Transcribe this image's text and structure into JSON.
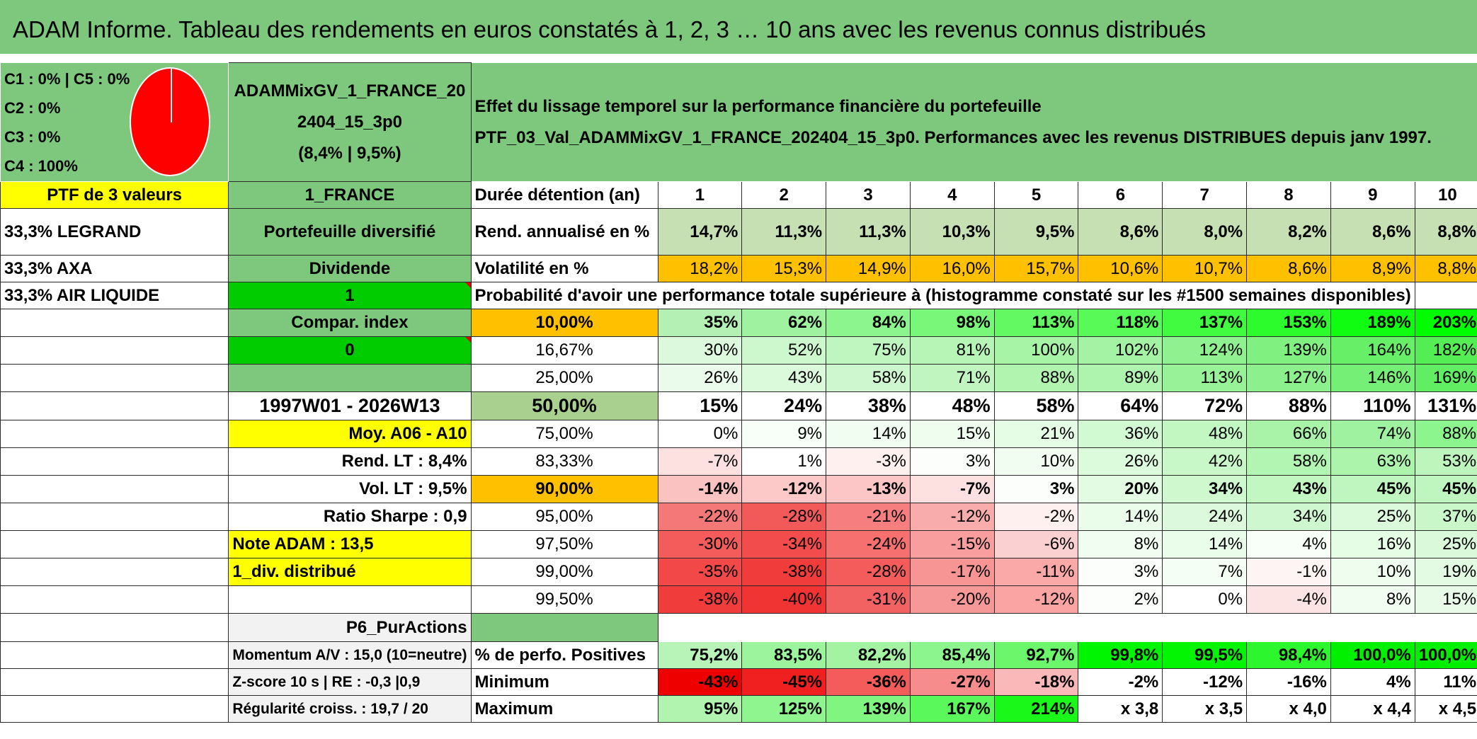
{
  "banner": {
    "title": "ADAM Informe. Tableau des rendements en euros constatés à 1, 2, 3 … 10 ans avec les revenus connus distribués"
  },
  "left": {
    "legend": [
      "C1 : 0% | C5 : 0%",
      "C2 : 0%",
      "C3 : 0%",
      "C4 : 100%"
    ],
    "ptf_label": "PTF de 3 valeurs",
    "holdings": [
      "33,3% LEGRAND",
      "33,3% AXA",
      "33,3% AIR LIQUIDE"
    ]
  },
  "mid": {
    "fund_name_line1": "ADAMMixGV_1_FRANCE_20",
    "fund_name_line2": "2404_15_3p0",
    "fund_name_line3": "(8,4% | 9,5%)",
    "region": "1_FRANCE",
    "diversified": "Portefeuille diversifié",
    "dividend": "Dividende",
    "dividend_value": "1",
    "compar_index": "Compar. index",
    "compar_index_value": "0",
    "period": "1997W01 - 2026W13",
    "avg": "Moy. A06 - A10",
    "rend_lt": "Rend. LT : 8,4%",
    "vol_lt": "Vol. LT : 9,5%",
    "sharpe": "Ratio Sharpe : 0,9",
    "note_adam": "Note ADAM : 13,5",
    "div_distrib": "1_div. distribué",
    "p6": "P6_PurActions",
    "momentum": "Momentum A/V : 15,0 (10=neutre)",
    "zscore": "Z-score 10 s | RE : -0,3 |0,9",
    "regularite": "Régularité croiss. : 19,7 / 20"
  },
  "header": {
    "effect_line1": "Effet du lissage temporel sur la performance financière du portefeuille",
    "effect_line2": "PTF_03_Val_ADAMMixGV_1_FRANCE_202404_15_3p0. Performances avec les revenus DISTRIBUES depuis janv 1997."
  },
  "table": {
    "duration_label": "Durée détention (an)",
    "years": [
      "1",
      "2",
      "3",
      "4",
      "5",
      "6",
      "7",
      "8",
      "9",
      "10"
    ],
    "rend_label": "Rend. annualisé en %",
    "rend": [
      "14,7%",
      "11,3%",
      "11,3%",
      "10,3%",
      "9,5%",
      "8,6%",
      "8,0%",
      "8,2%",
      "8,6%",
      "8,8%"
    ],
    "vol_label": "Volatilité en %",
    "vol": [
      "18,2%",
      "15,3%",
      "14,9%",
      "16,0%",
      "15,7%",
      "10,6%",
      "10,7%",
      "8,6%",
      "8,9%",
      "8,8%"
    ],
    "prob_label": "Probabilité d'avoir une performance totale supérieure à (histogramme constaté sur les #1500 semaines disponibles)",
    "rows": [
      {
        "p": "10,00%",
        "v": [
          "35%",
          "62%",
          "84%",
          "98%",
          "113%",
          "118%",
          "137%",
          "153%",
          "189%",
          "203%"
        ]
      },
      {
        "p": "16,67%",
        "v": [
          "30%",
          "52%",
          "75%",
          "81%",
          "100%",
          "102%",
          "124%",
          "139%",
          "164%",
          "182%"
        ]
      },
      {
        "p": "25,00%",
        "v": [
          "26%",
          "43%",
          "58%",
          "71%",
          "88%",
          "89%",
          "113%",
          "127%",
          "146%",
          "169%"
        ]
      },
      {
        "p": "50,00%",
        "v": [
          "15%",
          "24%",
          "38%",
          "48%",
          "58%",
          "64%",
          "72%",
          "88%",
          "110%",
          "131%"
        ]
      },
      {
        "p": "75,00%",
        "v": [
          "0%",
          "9%",
          "14%",
          "15%",
          "21%",
          "36%",
          "48%",
          "66%",
          "74%",
          "88%"
        ]
      },
      {
        "p": "83,33%",
        "v": [
          "-7%",
          "1%",
          "-3%",
          "3%",
          "10%",
          "26%",
          "42%",
          "58%",
          "63%",
          "53%"
        ]
      },
      {
        "p": "90,00%",
        "v": [
          "-14%",
          "-12%",
          "-13%",
          "-7%",
          "3%",
          "20%",
          "34%",
          "43%",
          "45%",
          "45%"
        ]
      },
      {
        "p": "95,00%",
        "v": [
          "-22%",
          "-28%",
          "-21%",
          "-12%",
          "-2%",
          "14%",
          "24%",
          "34%",
          "25%",
          "37%"
        ]
      },
      {
        "p": "97,50%",
        "v": [
          "-30%",
          "-34%",
          "-24%",
          "-15%",
          "-6%",
          "8%",
          "14%",
          "4%",
          "16%",
          "25%"
        ]
      },
      {
        "p": "99,00%",
        "v": [
          "-35%",
          "-38%",
          "-28%",
          "-17%",
          "-11%",
          "3%",
          "7%",
          "-1%",
          "10%",
          "19%"
        ]
      },
      {
        "p": "99,50%",
        "v": [
          "-38%",
          "-40%",
          "-31%",
          "-20%",
          "-12%",
          "2%",
          "0%",
          "-4%",
          "8%",
          "15%"
        ]
      }
    ],
    "pos_label": "% de perfo. Positives",
    "pos": [
      "75,2%",
      "83,5%",
      "82,2%",
      "85,4%",
      "92,7%",
      "99,8%",
      "99,5%",
      "98,4%",
      "100,0%",
      "100,0%"
    ],
    "min_label": "Minimum",
    "min": [
      "-43%",
      "-45%",
      "-36%",
      "-27%",
      "-18%",
      "-2%",
      "-12%",
      "-16%",
      "4%",
      "11%"
    ],
    "max_label": "Maximum",
    "max": [
      "95%",
      "125%",
      "139%",
      "167%",
      "214%",
      "x 3,8",
      "x 3,5",
      "x 4,0",
      "x 4,4",
      "x 4,5"
    ]
  },
  "colors": {
    "rows": [
      [
        "#b4f0b4",
        "#9ff29f",
        "#8df58d",
        "#79f779",
        "#63f963",
        "#58fa58",
        "#40fb40",
        "#2cfb2c",
        "#10fc10",
        "#00fd00"
      ],
      [
        "#ddf9dd",
        "#cdf7cd",
        "#bff5bf",
        "#b7f5b7",
        "#a7f4a7",
        "#a4f3a4",
        "#90f190",
        "#80f080",
        "#68ef68",
        "#54ee54"
      ],
      [
        "#ebfbeb",
        "#dbf9db",
        "#cff7cf",
        "#c0f5c0",
        "#b0f4b0",
        "#aef3ae",
        "#98f298",
        "#8cf08c",
        "#76ef76",
        "#62ee62"
      ],
      [
        "#ffffff",
        "#ffffff",
        "#ffffff",
        "#ffffff",
        "#ffffff",
        "#ffffff",
        "#ffffff",
        "#ffffff",
        "#ffffff",
        "#ffffff"
      ],
      [
        "#ffffff",
        "#f8fef8",
        "#f0fdf0",
        "#eefdee",
        "#e5fce5",
        "#d2fad2",
        "#c2f7c2",
        "#a9f3a9",
        "#9ff29f",
        "#8df58d"
      ],
      [
        "#fde0e0",
        "#ffffff",
        "#fff0f0",
        "#fbfefb",
        "#f0fdf0",
        "#dcfadc",
        "#c8f8c8",
        "#b2f4b2",
        "#acf3ac",
        "#bdf5bd"
      ],
      [
        "#fbc2c2",
        "#fcc8c8",
        "#fcc6c6",
        "#fde0e0",
        "#fbfefb",
        "#e2fbe2",
        "#cff8cf",
        "#c2f7c2",
        "#bff5bf",
        "#bff5bf"
      ],
      [
        "#f57878",
        "#f25a5a",
        "#f67e7e",
        "#f9acac",
        "#fff0f0",
        "#eafcea",
        "#ddf9dd",
        "#cff7cf",
        "#dbf9db",
        "#c9f7c9"
      ],
      [
        "#f45c5c",
        "#f24c4c",
        "#f67070",
        "#f89e9e",
        "#fbd0d0",
        "#f2fdf2",
        "#eafcea",
        "#f8fef8",
        "#e5fce5",
        "#daf9da"
      ],
      [
        "#f24848",
        "#f13c3c",
        "#f45c5c",
        "#f79494",
        "#faa8a8",
        "#fbfefb",
        "#f4fef4",
        "#fff4f4",
        "#eefdee",
        "#e2fbe2"
      ],
      [
        "#f13c3c",
        "#f03434",
        "#f36262",
        "#f79898",
        "#faa4a4",
        "#fbfefb",
        "#ffffff",
        "#fde4e4",
        "#f2fdf2",
        "#e8fbe8"
      ]
    ],
    "pos": [
      "#b8f3b8",
      "#9cf59c",
      "#a3f3a3",
      "#8df58d",
      "#6cf66c",
      "#00f500",
      "#04f504",
      "#2cf62c",
      "#00f000",
      "#00f000"
    ],
    "min": [
      "#ee0000",
      "#f02020",
      "#f45c5c",
      "#f78c8c",
      "#fbb8b8",
      "#ffffff",
      "#ffffff",
      "#ffffff",
      "#ffffff",
      "#ffffff"
    ],
    "max": [
      "#b0f4b0",
      "#8ff58f",
      "#80f580",
      "#5bf85b",
      "#1af81a",
      "#ffffff",
      "#ffffff",
      "#ffffff",
      "#ffffff",
      "#ffffff"
    ],
    "rend": "#c6e0b4",
    "vol": "#ffc000"
  }
}
